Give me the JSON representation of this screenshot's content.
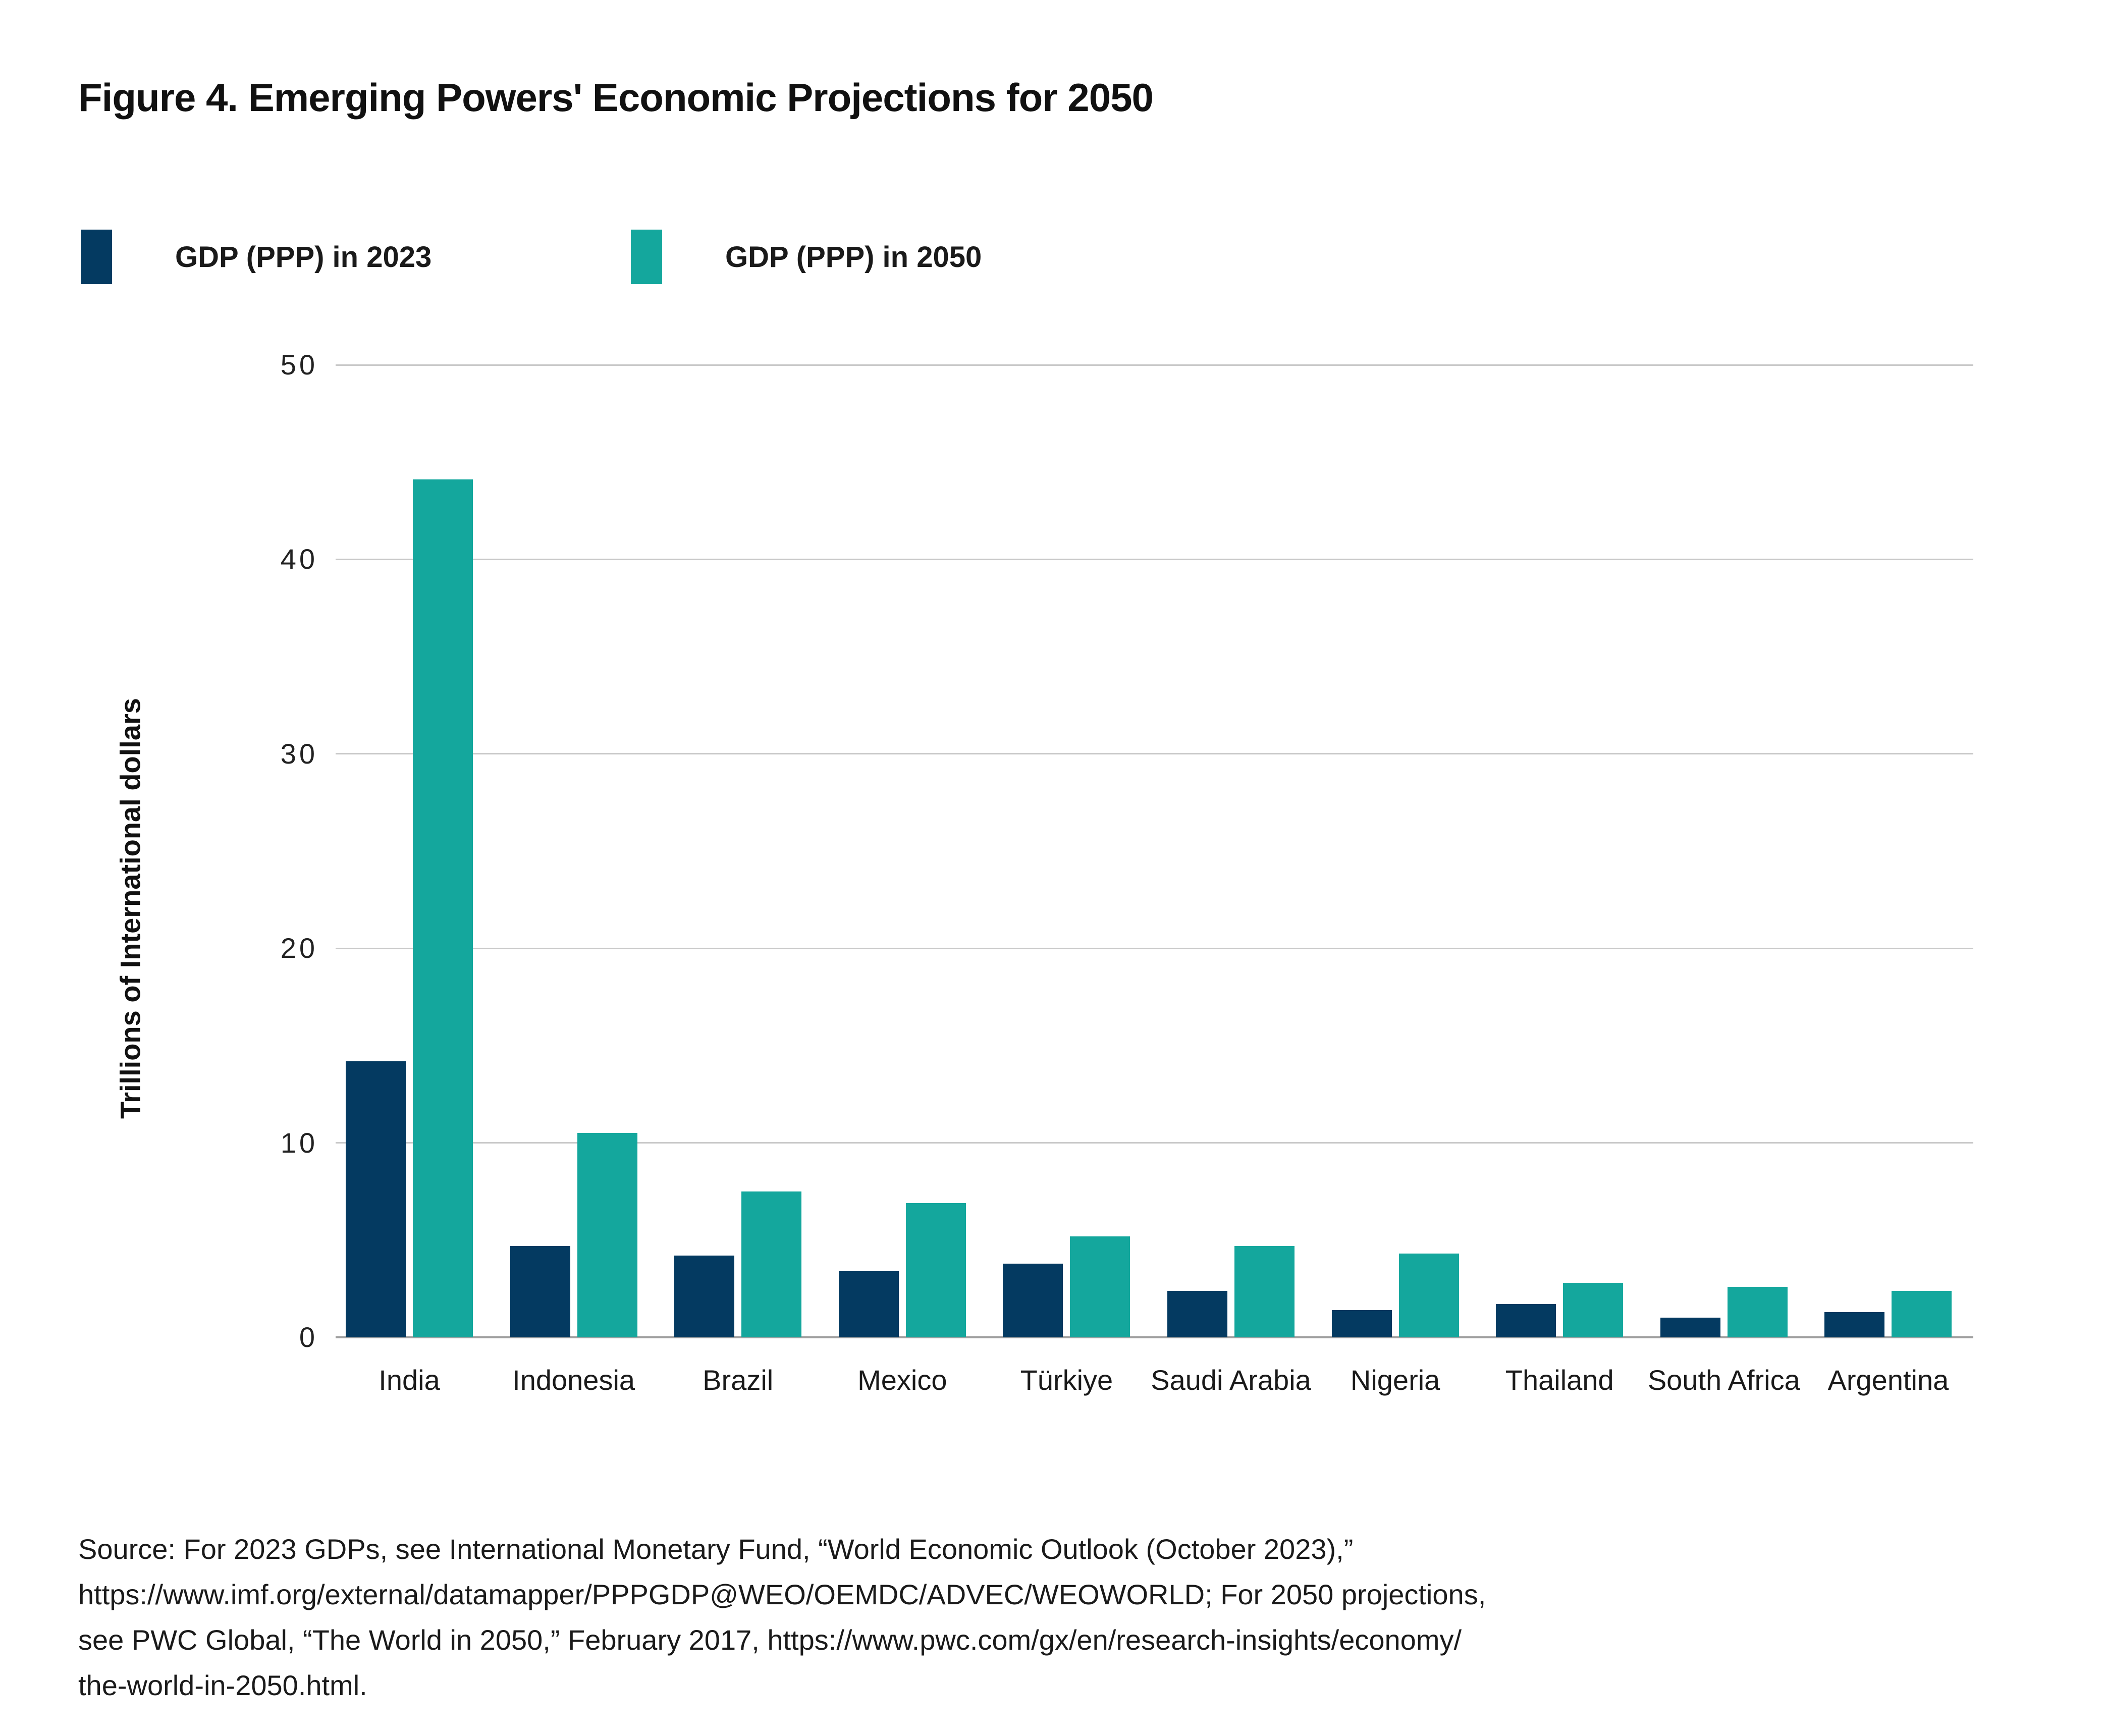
{
  "figure": {
    "title": "Figure 4. Emerging Powers' Economic Projections for 2050",
    "source_text": "Source: For 2023 GDPs, see International Monetary Fund, “World Economic Outlook (October 2023),”\nhttps://www.imf.org/external/datamapper/PPPGDP@WEO/OEMDC/ADVEC/WEOWORLD; For 2050 projections,\nsee PWC Global, “The World in 2050,” February 2017, https://www.pwc.com/gx/en/research-insights/economy/\nthe-world-in-2050.html."
  },
  "legend": {
    "items": [
      {
        "label": "GDP (PPP) in 2023",
        "color": "#043A61"
      },
      {
        "label": "GDP (PPP) in 2050",
        "color": "#14A79D"
      }
    ]
  },
  "chart_data": {
    "type": "bar",
    "title": "Figure 4. Emerging Powers' Economic Projections for 2050",
    "categories": [
      "India",
      "Indonesia",
      "Brazil",
      "Mexico",
      "Türkiye",
      "Saudi Arabia",
      "Nigeria",
      "Thailand",
      "South Africa",
      "Argentina"
    ],
    "series": [
      {
        "name": "GDP (PPP) in 2023",
        "color": "#043A61",
        "values": [
          14.2,
          4.7,
          4.2,
          3.4,
          3.8,
          2.4,
          1.4,
          1.7,
          1.0,
          1.3
        ]
      },
      {
        "name": "GDP (PPP) in 2050",
        "color": "#14A79D",
        "values": [
          44.1,
          10.5,
          7.5,
          6.9,
          5.2,
          4.7,
          4.3,
          2.8,
          2.6,
          2.4
        ]
      }
    ],
    "xlabel": "",
    "ylabel": "Trillions of International dollars",
    "ylim": [
      0,
      50
    ],
    "yticks": [
      0,
      10,
      20,
      30,
      40,
      50
    ],
    "grid": true,
    "gridline_color": "#c9c9c9",
    "baseline_color": "#9e9e9e",
    "legend_position": "top-left"
  }
}
